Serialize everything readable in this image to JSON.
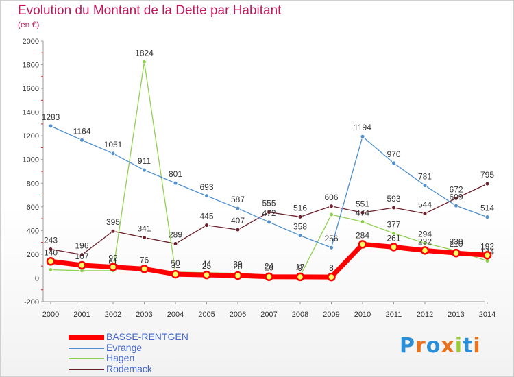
{
  "title": "Evolution du Montant de la Dette par Habitant",
  "unit_label": "(en €)",
  "logo": {
    "letters": [
      "P",
      "r",
      "o",
      "x",
      "i",
      "t",
      "i"
    ],
    "colors": [
      "#2a8fd6",
      "#e8731c",
      "#2a8fd6",
      "#e8731c",
      "#9acd32",
      "#2a8fd6",
      "#e8731c"
    ]
  },
  "chart_data": {
    "type": "line",
    "title": "Evolution du Montant de la Dette par Habitant",
    "ylabel": "(en €)",
    "xlabel": "",
    "ylim": [
      -200,
      2000
    ],
    "yticks": [
      "-200",
      "0",
      "200",
      "400",
      "600",
      "800",
      "1000",
      "1200",
      "1400",
      "1600",
      "1800",
      "2000"
    ],
    "categories": [
      "2000",
      "2001",
      "2002",
      "2003",
      "2004",
      "2005",
      "2006",
      "2007",
      "2008",
      "2009",
      "2010",
      "2011",
      "2012",
      "2013",
      "2014"
    ],
    "grid": false,
    "legend_position": "bottom-left",
    "series": [
      {
        "name": "Rodemack",
        "color": "#6b1f2a",
        "values": [
          243,
          196,
          395,
          341,
          289,
          445,
          407,
          555,
          516,
          606,
          551,
          593,
          544,
          672,
          795
        ],
        "labels": [
          "243",
          "196",
          "395",
          "341",
          "289",
          "445",
          "407",
          "555",
          "516",
          "606",
          "551",
          "593",
          "544",
          "672",
          "795"
        ]
      },
      {
        "name": "Hagen",
        "color": "#8fd14f",
        "values": [
          69,
          61,
          61,
          1824,
          50,
          44,
          39,
          24,
          17,
          535,
          474,
          377,
          294,
          230,
          144
        ],
        "labels": [
          "",
          "",
          "61",
          "1824",
          "50",
          "44",
          "39",
          "24",
          "17",
          "",
          "474",
          "377",
          "294",
          "230",
          "144"
        ]
      },
      {
        "name": "Evrange",
        "color": "#4f8fce",
        "values": [
          1283,
          1164,
          1051,
          911,
          801,
          693,
          587,
          472,
          358,
          256,
          1194,
          970,
          781,
          609,
          514
        ],
        "labels": [
          "1283",
          "1164",
          "1051",
          "911",
          "801",
          "693",
          "587",
          "472",
          "358",
          "256",
          "1194",
          "970",
          "781",
          "609",
          "514"
        ]
      },
      {
        "name": "BASSE-RENTGEN",
        "color": "#ff0000",
        "values": [
          140,
          107,
          92,
          76,
          31,
          25,
          20,
          10,
          9,
          8,
          284,
          261,
          232,
          210,
          192
        ],
        "labels": [
          "140",
          "107",
          "92",
          "76",
          "31",
          "25",
          "20",
          "10",
          "9",
          "8",
          "284",
          "261",
          "232",
          "210",
          "192"
        ]
      }
    ],
    "legend": [
      {
        "name": "BASSE-RENTGEN",
        "color": "#ff0000"
      },
      {
        "name": "Evrange",
        "color": "#4f8fce"
      },
      {
        "name": "Hagen",
        "color": "#8fd14f"
      },
      {
        "name": "Rodemack",
        "color": "#6b1f2a"
      }
    ]
  }
}
